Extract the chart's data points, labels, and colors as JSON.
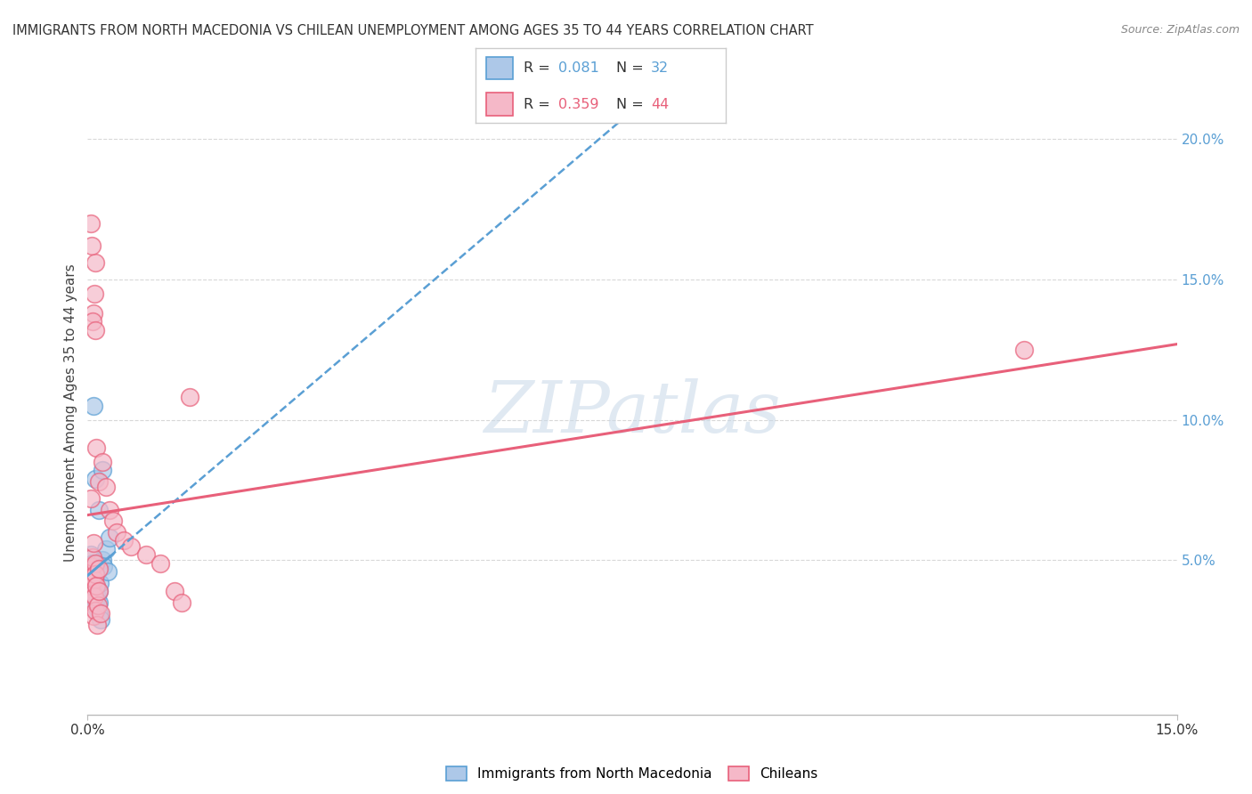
{
  "title": "IMMIGRANTS FROM NORTH MACEDONIA VS CHILEAN UNEMPLOYMENT AMONG AGES 35 TO 44 YEARS CORRELATION CHART",
  "source": "Source: ZipAtlas.com",
  "ylabel": "Unemployment Among Ages 35 to 44 years",
  "xlim": [
    0.0,
    0.15
  ],
  "ylim": [
    -0.005,
    0.21
  ],
  "x_ticks": [
    0.0,
    0.05,
    0.1,
    0.15
  ],
  "x_tick_labels": [
    "0.0%",
    "",
    "",
    "15.0%"
  ],
  "y_ticks_right": [
    0.05,
    0.1,
    0.15,
    0.2
  ],
  "y_tick_labels_right": [
    "5.0%",
    "10.0%",
    "15.0%",
    "20.0%"
  ],
  "legend_labels": [
    "Immigrants from North Macedonia",
    "Chileans"
  ],
  "blue_R": "0.081",
  "blue_N": "32",
  "pink_R": "0.359",
  "pink_N": "44",
  "blue_color": "#adc8e8",
  "pink_color": "#f5b8c8",
  "blue_edge_color": "#5a9fd4",
  "pink_edge_color": "#e8607a",
  "blue_line_color": "#5a9fd4",
  "pink_line_color": "#e8607a",
  "watermark": "ZIPatlas",
  "background_color": "#ffffff",
  "grid_color": "#d8d8d8",
  "blue_dots": [
    [
      0.0002,
      0.043
    ],
    [
      0.0003,
      0.047
    ],
    [
      0.0004,
      0.052
    ],
    [
      0.0005,
      0.039
    ],
    [
      0.0005,
      0.046
    ],
    [
      0.0006,
      0.041
    ],
    [
      0.0007,
      0.049
    ],
    [
      0.0007,
      0.035
    ],
    [
      0.0008,
      0.044
    ],
    [
      0.0008,
      0.038
    ],
    [
      0.0009,
      0.042
    ],
    [
      0.0009,
      0.034
    ],
    [
      0.001,
      0.048
    ],
    [
      0.001,
      0.036
    ],
    [
      0.0011,
      0.04
    ],
    [
      0.0012,
      0.045
    ],
    [
      0.0013,
      0.033
    ],
    [
      0.0013,
      0.037
    ],
    [
      0.0015,
      0.031
    ],
    [
      0.0015,
      0.039
    ],
    [
      0.0016,
      0.035
    ],
    [
      0.0017,
      0.042
    ],
    [
      0.0018,
      0.029
    ],
    [
      0.002,
      0.05
    ],
    [
      0.0022,
      0.048
    ],
    [
      0.0025,
      0.054
    ],
    [
      0.0028,
      0.046
    ],
    [
      0.003,
      0.058
    ],
    [
      0.0008,
      0.105
    ],
    [
      0.001,
      0.079
    ],
    [
      0.0015,
      0.068
    ],
    [
      0.002,
      0.082
    ]
  ],
  "pink_dots": [
    [
      0.0002,
      0.042
    ],
    [
      0.0003,
      0.046
    ],
    [
      0.0004,
      0.04
    ],
    [
      0.0005,
      0.048
    ],
    [
      0.0005,
      0.035
    ],
    [
      0.0006,
      0.044
    ],
    [
      0.0007,
      0.051
    ],
    [
      0.0007,
      0.038
    ],
    [
      0.0008,
      0.03
    ],
    [
      0.0008,
      0.056
    ],
    [
      0.0009,
      0.043
    ],
    [
      0.0009,
      0.037
    ],
    [
      0.001,
      0.049
    ],
    [
      0.001,
      0.032
    ],
    [
      0.0011,
      0.045
    ],
    [
      0.0012,
      0.041
    ],
    [
      0.0013,
      0.027
    ],
    [
      0.0014,
      0.034
    ],
    [
      0.0015,
      0.047
    ],
    [
      0.0016,
      0.039
    ],
    [
      0.0018,
      0.031
    ],
    [
      0.0008,
      0.138
    ],
    [
      0.0009,
      0.145
    ],
    [
      0.001,
      0.156
    ],
    [
      0.0007,
      0.135
    ],
    [
      0.0011,
      0.132
    ],
    [
      0.0006,
      0.162
    ],
    [
      0.0012,
      0.09
    ],
    [
      0.0005,
      0.17
    ],
    [
      0.0004,
      0.072
    ],
    [
      0.002,
      0.085
    ],
    [
      0.0015,
      0.078
    ],
    [
      0.0025,
      0.076
    ],
    [
      0.003,
      0.068
    ],
    [
      0.0035,
      0.064
    ],
    [
      0.004,
      0.06
    ],
    [
      0.005,
      0.057
    ],
    [
      0.006,
      0.055
    ],
    [
      0.008,
      0.052
    ],
    [
      0.01,
      0.049
    ],
    [
      0.012,
      0.039
    ],
    [
      0.013,
      0.035
    ],
    [
      0.014,
      0.108
    ],
    [
      0.129,
      0.125
    ]
  ]
}
